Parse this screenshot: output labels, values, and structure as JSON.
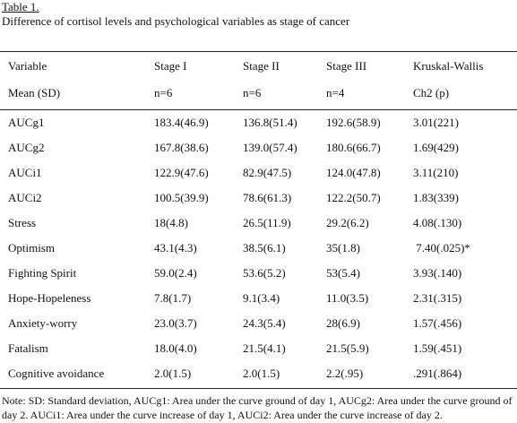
{
  "caption": {
    "label": "Table 1.",
    "title": "Difference of cortisol levels and psychological variables as stage of cancer"
  },
  "header": {
    "row1": [
      "Variable",
      "Stage I",
      "Stage II",
      "Stage III",
      "Kruskal-Wallis"
    ],
    "row2": [
      "Mean (SD)",
      "n=6",
      "n=6",
      "n=4",
      "Ch2 (p)"
    ]
  },
  "rows": [
    [
      "AUCg1",
      "183.4(46.9)",
      "136.8(51.4)",
      "192.6(58.9)",
      "3.01(221)"
    ],
    [
      "AUCg2",
      "167.8(38.6)",
      "139.0(57.4)",
      "180.6(66.7)",
      "1.69(429)"
    ],
    [
      "AUCi1",
      "122.9(47.6)",
      "82.9(47.5)",
      "124.0(47.8)",
      "3.11(210)"
    ],
    [
      "AUCi2",
      "100.5(39.9)",
      "78.6(61.3)",
      "122.2(50.7)",
      "1.83(339)"
    ],
    [
      "Stress",
      "18(4.8)",
      "26.5(11.9)",
      "29.2(6.2)",
      "4.08(.130)"
    ],
    [
      "Optimism",
      "43.1(4.3)",
      "38.5(6.1)",
      "35(1.8)",
      " 7.40(.025)*"
    ],
    [
      "Fighting Spirit",
      "59.0(2.4)",
      "53.6(5.2)",
      "53(5.4)",
      "3.93(.140)"
    ],
    [
      "Hope-Hopeleness",
      "7.8(1.7)",
      "9.1(3.4)",
      "11.0(3.5)",
      "2.31(.315)"
    ],
    [
      "Anxiety-worry",
      "23.0(3.7)",
      "24.3(5.4)",
      "28(6.9)",
      "1.57(.456)"
    ],
    [
      "Fatalism",
      "18.0(4.0)",
      "21.5(4.1)",
      "21.5(5.9)",
      "1.59(.451)"
    ],
    [
      "Cognitive avoidance",
      "2.0(1.5)",
      "2.0(1.5)",
      "2.2(.95)",
      ".291(.864)"
    ]
  ],
  "note": "Note: SD: Standard deviation, AUCg1: Area under the curve ground of day 1, AUCg2: Area under the curve ground of day 2. AUCi1: Area under the curve increase of day 1, AUCi2: Area under the curve increase of day 2."
}
